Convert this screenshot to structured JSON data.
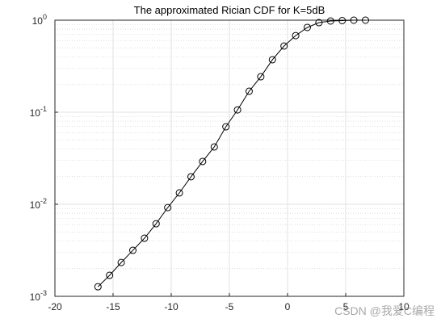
{
  "chart_data": {
    "type": "line",
    "title": "The approximated Rician CDF for K=5dB",
    "x": [
      -16.3,
      -15.3,
      -14.3,
      -13.3,
      -12.3,
      -11.3,
      -10.3,
      -9.3,
      -8.3,
      -7.3,
      -6.3,
      -5.3,
      -4.3,
      -3.3,
      -2.3,
      -1.3,
      -0.3,
      0.7,
      1.7,
      2.7,
      3.7,
      4.7,
      5.7,
      6.7
    ],
    "series": [
      {
        "name": "CDF",
        "color": "#000000",
        "marker": "circle",
        "values": [
          0.00127,
          0.00169,
          0.00233,
          0.00316,
          0.00428,
          0.00615,
          0.0092,
          0.0133,
          0.0199,
          0.0292,
          0.042,
          0.0695,
          0.106,
          0.169,
          0.243,
          0.372,
          0.524,
          0.68,
          0.834,
          0.941,
          0.98,
          0.99,
          1.0,
          1.0
        ]
      }
    ],
    "xlim": [
      -20,
      10
    ],
    "xticks": [
      -20,
      -15,
      -10,
      -5,
      0,
      5,
      10
    ],
    "ylim": [
      0.001,
      1
    ],
    "yscale": "log",
    "yticks": [
      {
        "value": 0.001,
        "label": "10",
        "exponent": "-3"
      },
      {
        "value": 0.01,
        "label": "10",
        "exponent": "-2"
      },
      {
        "value": 0.1,
        "label": "10",
        "exponent": "-1"
      },
      {
        "value": 1,
        "label": "10",
        "exponent": "0"
      }
    ],
    "grid": true,
    "minor_grid": true,
    "watermark": "CSDN @我爱C编程"
  }
}
